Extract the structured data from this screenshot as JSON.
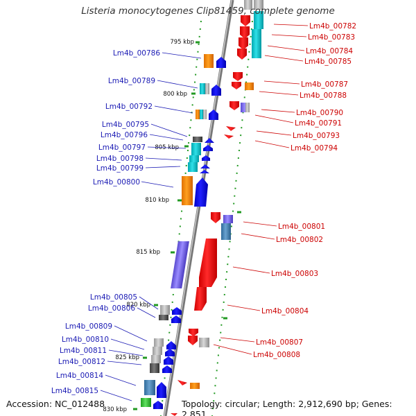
{
  "title": "Listeria monocytogenes Clip81459, complete genome",
  "accession": "Accession: NC_012488",
  "topology": "Topology: circular; Length: 2,912,690 bp; Genes: 2,851",
  "colors": {
    "left_label": "#1a1ab4",
    "right_label": "#cc0000",
    "tick": "#229922",
    "backbone": "#808080",
    "gene_red": "#ff0000",
    "gene_blue": "#0a0aff",
    "gene_orange": "#ff8c00",
    "gene_cyan": "#00c8d2",
    "gene_gray": "#b4b4b4",
    "gene_darkgray": "#5a5a5a",
    "gene_steelblue": "#4682b4",
    "gene_purple": "#7b68ee",
    "gene_green": "#32c832"
  },
  "scale_labels": [
    "795 kbp",
    "800 kbp",
    "805 kbp",
    "810 kbp",
    "815 kbp",
    "820 kbp",
    "825 kbp",
    "830 kbp"
  ],
  "left_labels": [
    "Lm4b_00786",
    "Lm4b_00789",
    "Lm4b_00792",
    "Lm4b_00795",
    "Lm4b_00796",
    "Lm4b_00797",
    "Lm4b_00798",
    "Lm4b_00799",
    "Lm4b_00800",
    "Lm4b_00805",
    "Lm4b_00806",
    "Lm4b_00809",
    "Lm4b_00810",
    "Lm4b_00811",
    "Lm4b_00812",
    "Lm4b_00814",
    "Lm4b_00815"
  ],
  "right_labels": [
    "Lm4b_00782",
    "Lm4b_00783",
    "Lm4b_00784",
    "Lm4b_00785",
    "Lm4b_00787",
    "Lm4b_00788",
    "Lm4b_00790",
    "Lm4b_00791",
    "Lm4b_00793",
    "Lm4b_00794",
    "Lm4b_00801",
    "Lm4b_00802",
    "Lm4b_00803",
    "Lm4b_00804",
    "Lm4b_00807",
    "Lm4b_00808"
  ]
}
